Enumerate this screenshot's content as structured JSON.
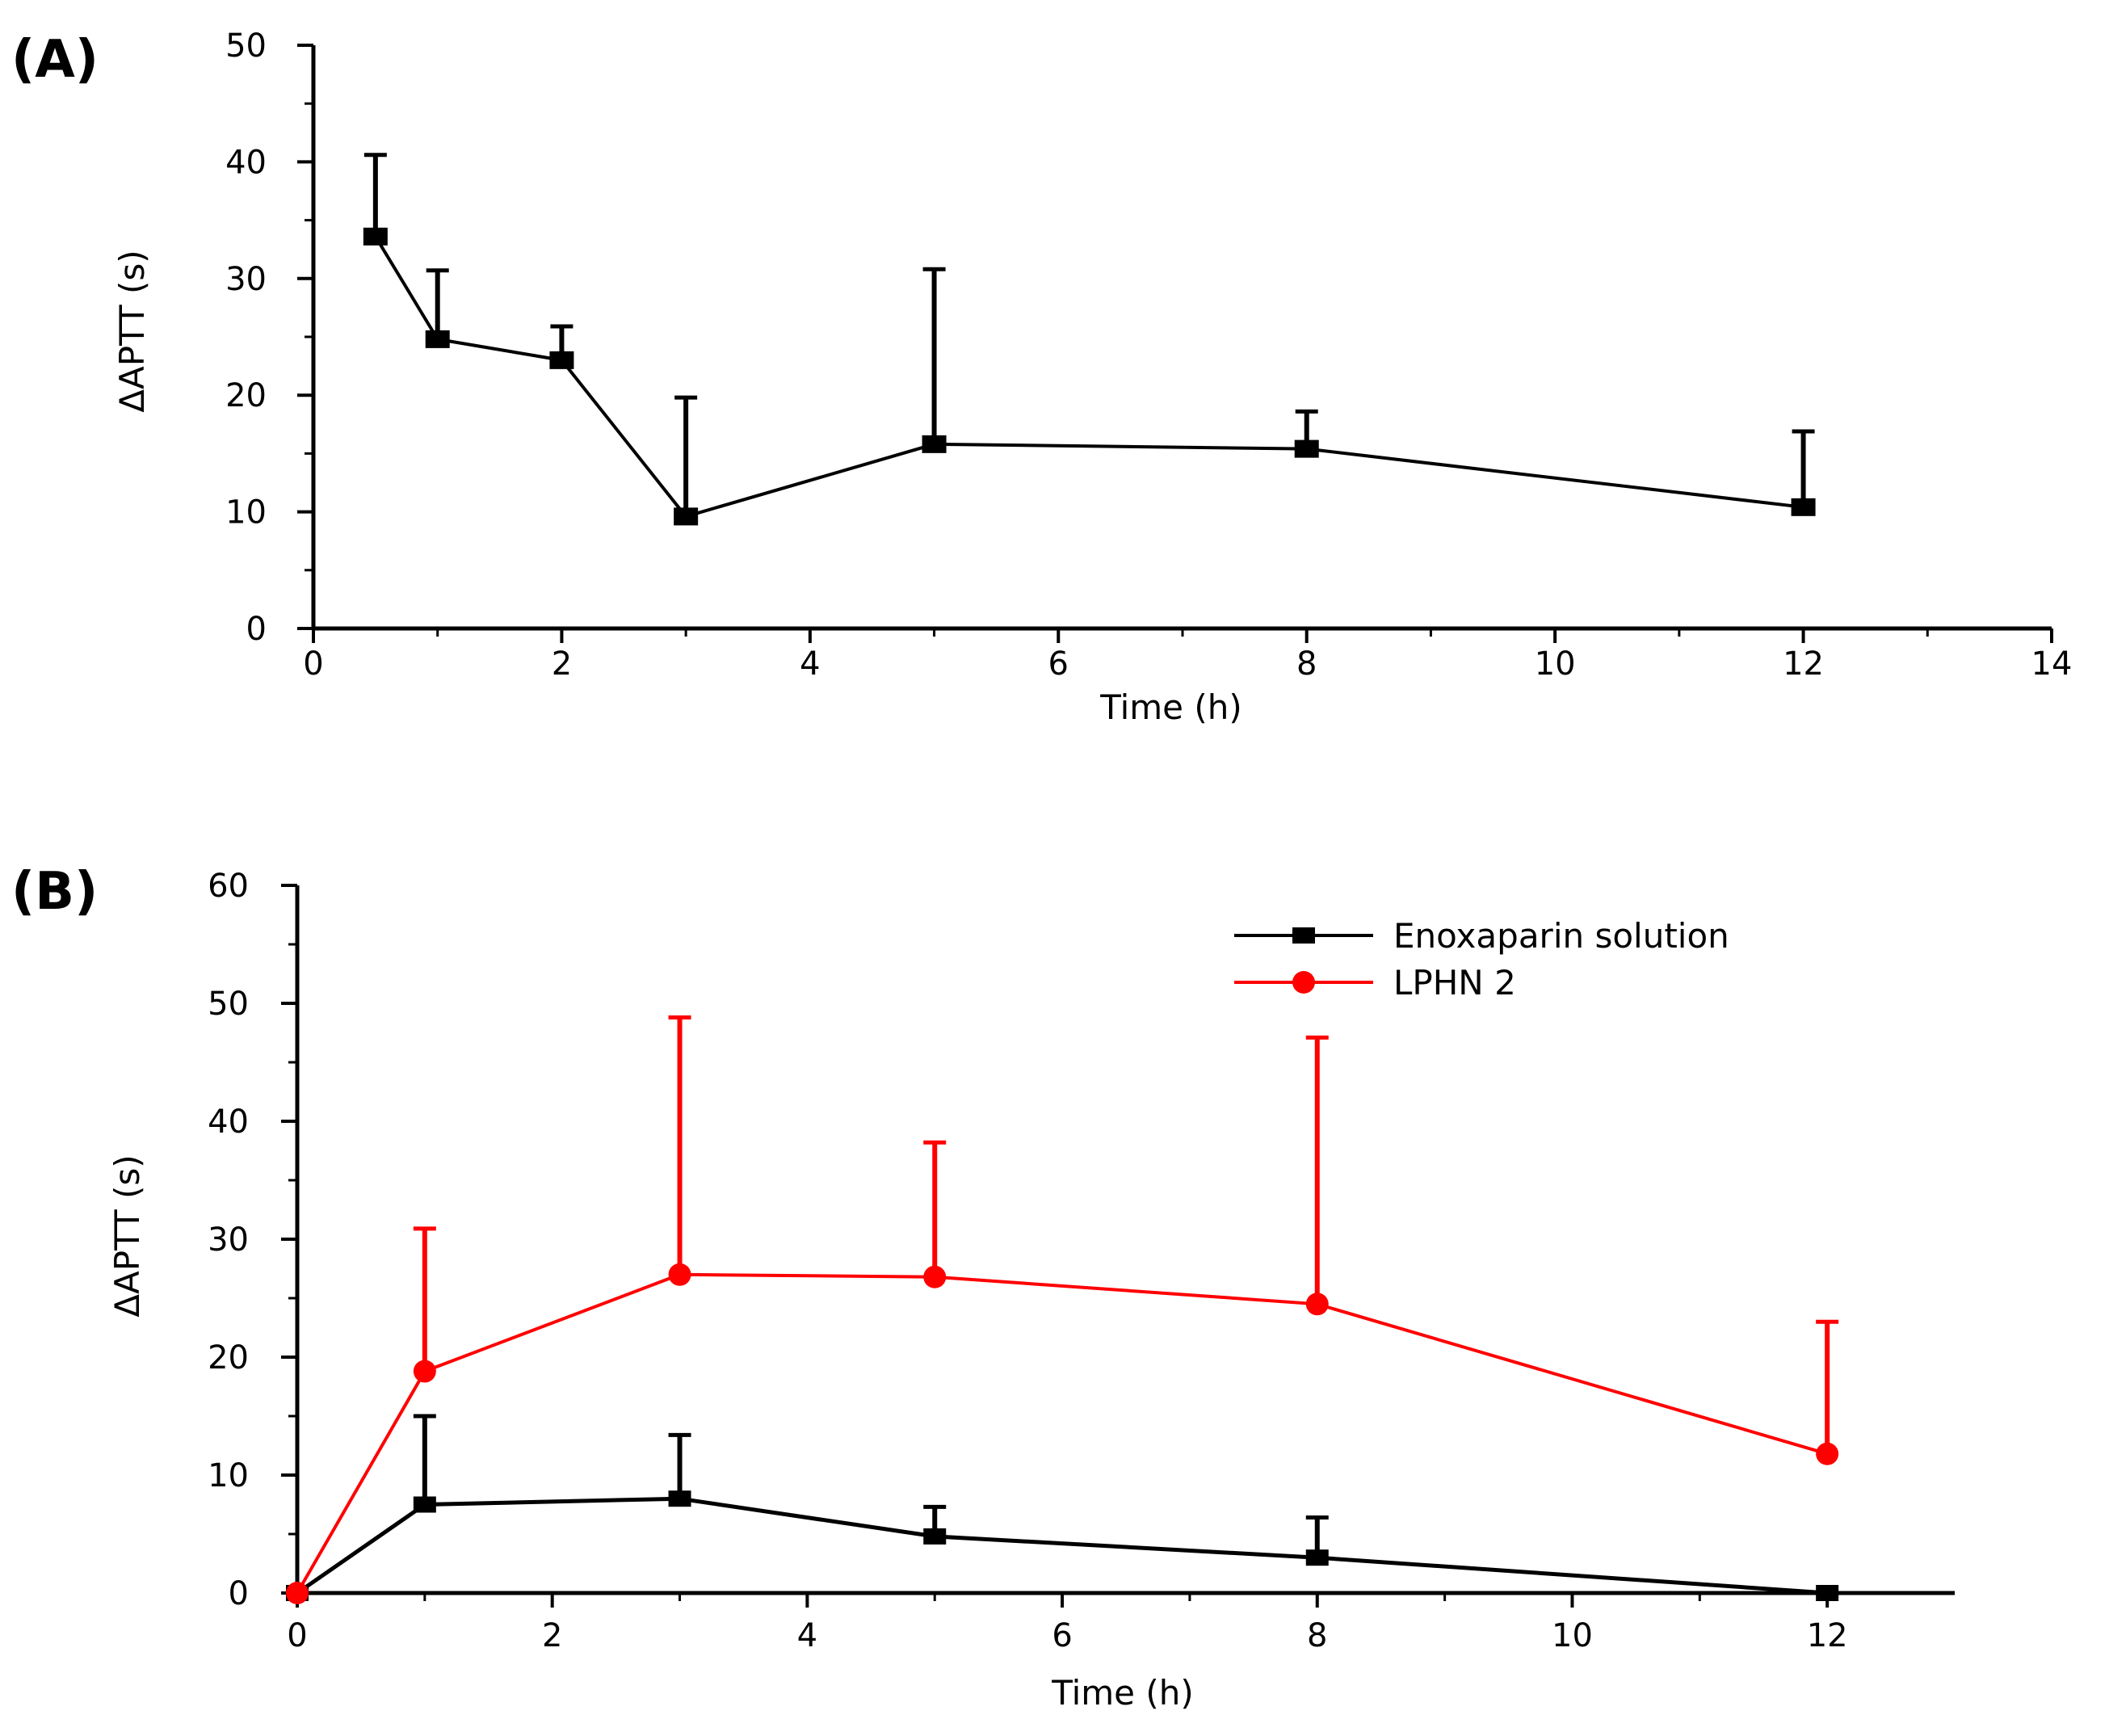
{
  "chart_data": [
    {
      "panel_label": "(A)",
      "type": "line",
      "xlabel": "Time (h)",
      "ylabel": "ΔAPTT  (s)",
      "xlim": [
        0,
        14
      ],
      "ylim": [
        0,
        50
      ],
      "xticks": [
        "0",
        "2",
        "4",
        "6",
        "8",
        "10",
        "12",
        "14"
      ],
      "yticks": [
        "0",
        "10",
        "20",
        "30",
        "40",
        "50"
      ],
      "x_tick_values": [
        0,
        2,
        4,
        6,
        8,
        10,
        12,
        14
      ],
      "y_tick_values": [
        0,
        10,
        20,
        30,
        40,
        50
      ],
      "legend": false,
      "series": [
        {
          "name": "ΔAPTT",
          "color": "#000000",
          "marker": "square",
          "x": [
            0.5,
            1,
            2,
            3,
            5,
            8,
            12
          ],
          "values": [
            33.6,
            24.8,
            23.0,
            9.6,
            15.8,
            15.4,
            10.4
          ],
          "error_upper": [
            40.6,
            30.7,
            25.9,
            19.8,
            30.8,
            18.6,
            16.9
          ]
        }
      ]
    },
    {
      "panel_label": "(B)",
      "type": "line",
      "xlabel": "Time (h)",
      "ylabel": "ΔAPTT (s)",
      "xlim": [
        0,
        13
      ],
      "ylim": [
        0,
        60
      ],
      "xticks": [
        "0",
        "2",
        "4",
        "6",
        "8",
        "10",
        "12"
      ],
      "yticks": [
        "0",
        "10",
        "20",
        "30",
        "40",
        "50",
        "60"
      ],
      "x_tick_values": [
        0,
        2,
        4,
        6,
        8,
        10,
        12
      ],
      "y_tick_values": [
        0,
        10,
        20,
        30,
        40,
        50,
        60
      ],
      "legend": true,
      "legend_position": "top-right",
      "series": [
        {
          "name": "Enoxaparin solution",
          "color": "#000000",
          "marker": "square",
          "x": [
            0,
            1,
            3,
            5,
            8,
            12
          ],
          "values": [
            0,
            7.5,
            8.0,
            4.8,
            3.0,
            0
          ],
          "error_upper": [
            null,
            15.0,
            13.4,
            7.3,
            6.4,
            null
          ]
        },
        {
          "name": "LPHN 2",
          "color": "#ff0000",
          "marker": "circle",
          "x": [
            0,
            1,
            3,
            5,
            8,
            12
          ],
          "values": [
            0,
            18.8,
            27.0,
            26.8,
            24.5,
            11.8
          ],
          "error_upper": [
            null,
            30.9,
            48.8,
            38.2,
            47.1,
            23.0
          ]
        }
      ]
    }
  ]
}
